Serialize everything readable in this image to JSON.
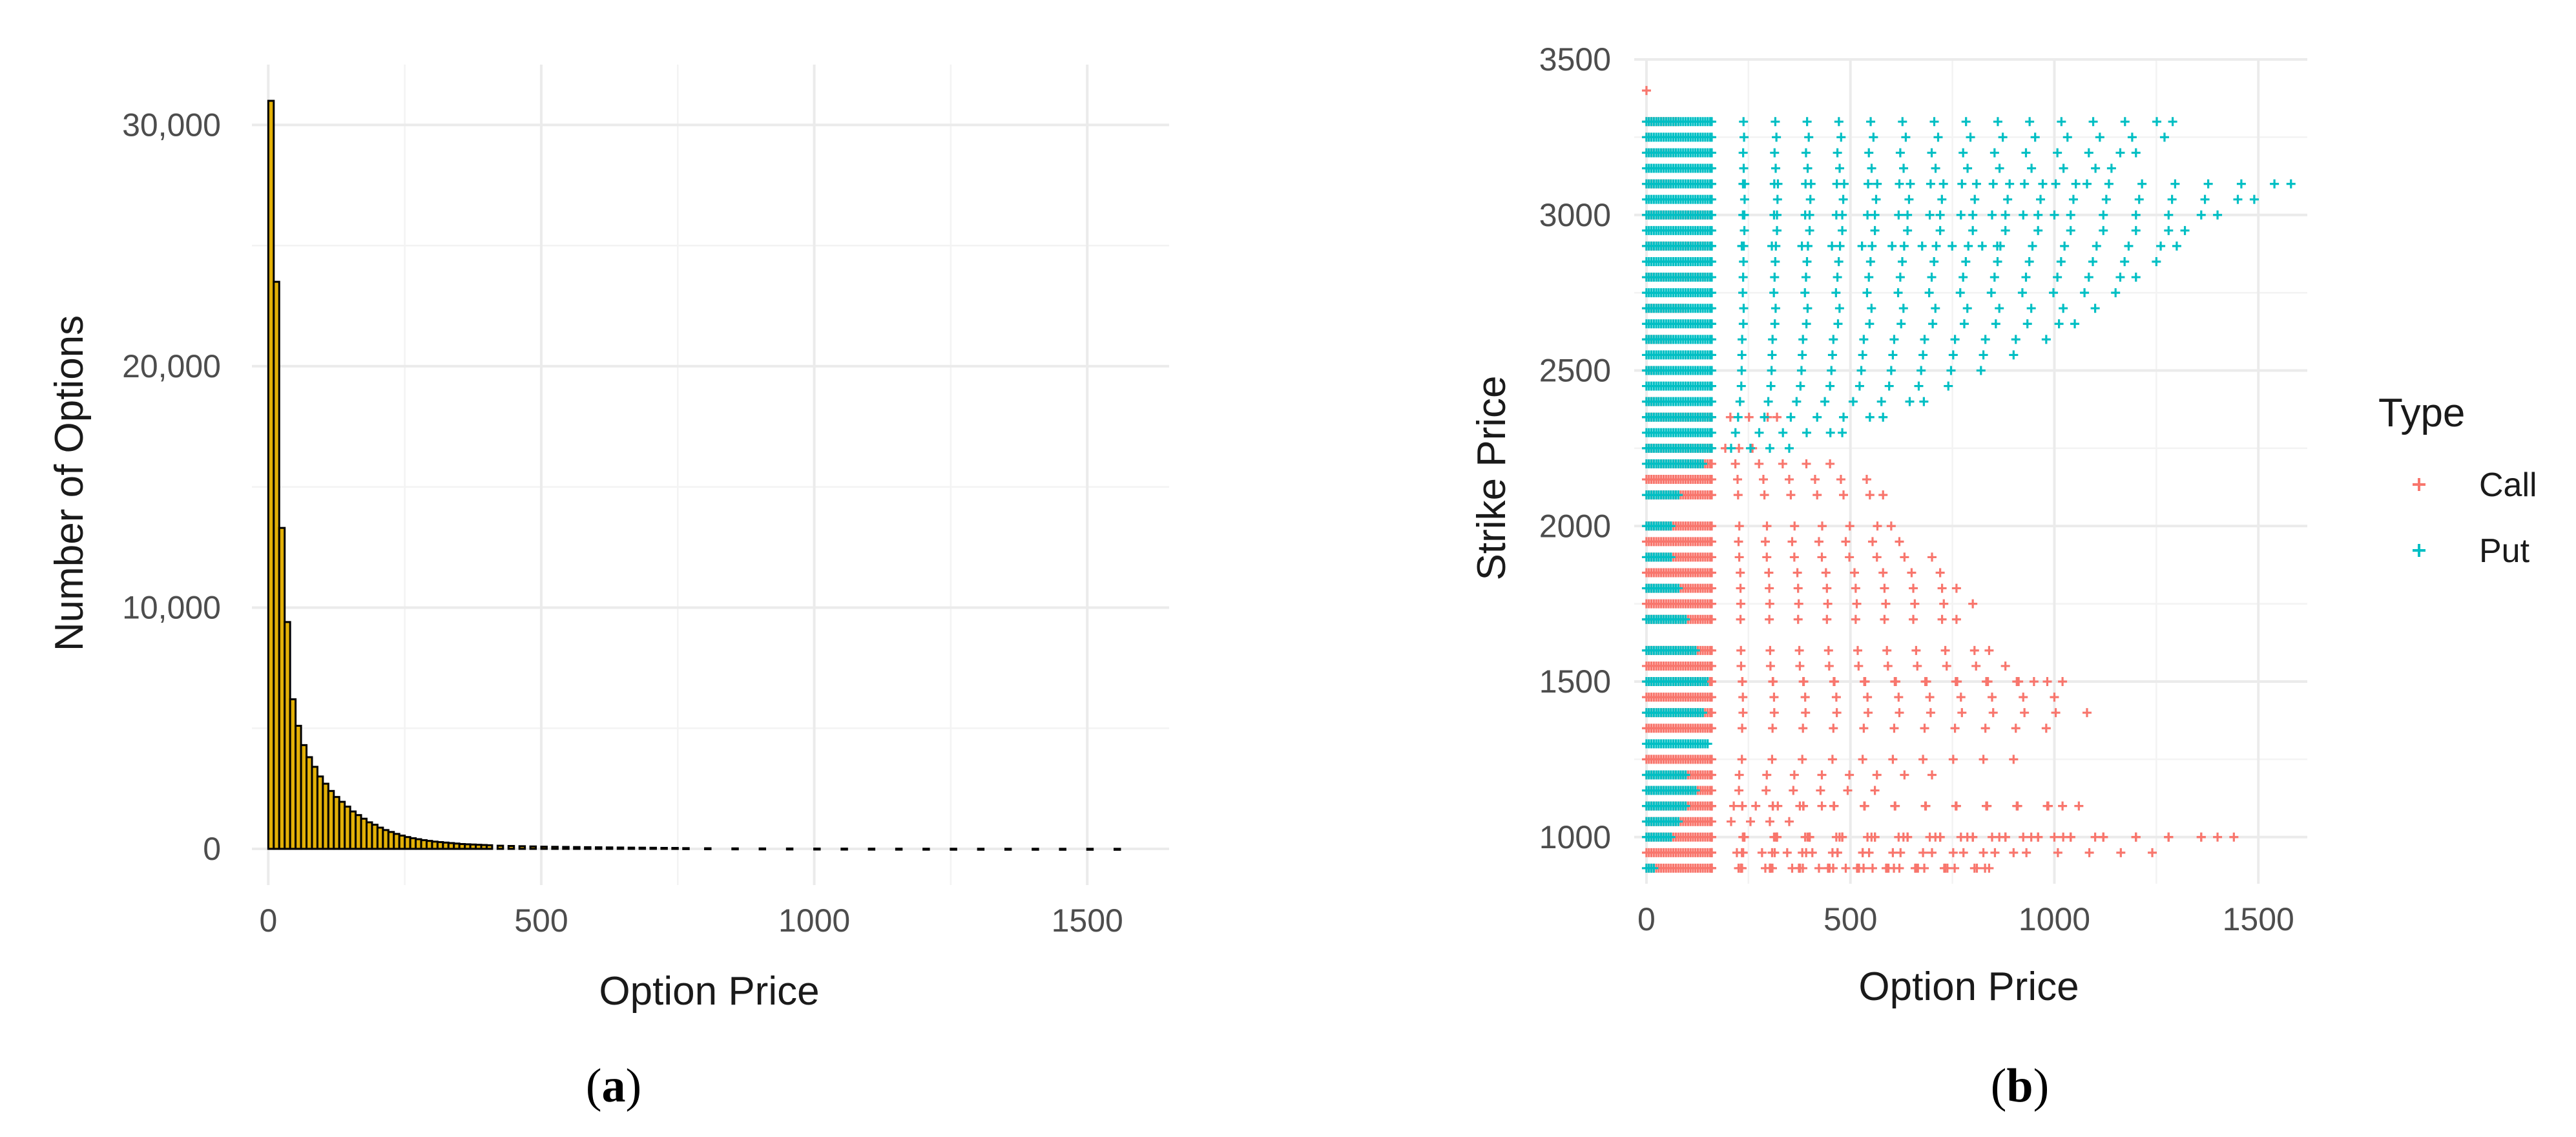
{
  "chart_data": [
    {
      "type": "bar",
      "panel_label": "a",
      "xlabel": "Option Price",
      "ylabel": "Number of Options",
      "xlim": [
        -30,
        1650
      ],
      "ylim": [
        -1500,
        32500
      ],
      "xticks": [
        0,
        500,
        1000,
        1500
      ],
      "yticks": [
        0,
        10000,
        20000,
        30000
      ],
      "ytick_labels": [
        "0",
        "10,000",
        "20,000",
        "30,000"
      ],
      "grid": true,
      "bin_width": 10,
      "fill_color": "#e2b007",
      "edge_color": "#000000",
      "bins": [
        [
          0,
          31000
        ],
        [
          10,
          23500
        ],
        [
          20,
          13300
        ],
        [
          30,
          9400
        ],
        [
          40,
          6200
        ],
        [
          50,
          5100
        ],
        [
          60,
          4300
        ],
        [
          70,
          3800
        ],
        [
          80,
          3400
        ],
        [
          90,
          3000
        ],
        [
          100,
          2700
        ],
        [
          110,
          2400
        ],
        [
          120,
          2150
        ],
        [
          130,
          1950
        ],
        [
          140,
          1750
        ],
        [
          150,
          1550
        ],
        [
          160,
          1400
        ],
        [
          170,
          1250
        ],
        [
          180,
          1100
        ],
        [
          190,
          1000
        ],
        [
          200,
          880
        ],
        [
          210,
          780
        ],
        [
          220,
          700
        ],
        [
          230,
          620
        ],
        [
          240,
          550
        ],
        [
          250,
          490
        ],
        [
          260,
          440
        ],
        [
          270,
          400
        ],
        [
          280,
          360
        ],
        [
          290,
          330
        ],
        [
          300,
          300
        ],
        [
          310,
          280
        ],
        [
          320,
          260
        ],
        [
          330,
          240
        ],
        [
          340,
          220
        ],
        [
          350,
          200
        ],
        [
          360,
          190
        ],
        [
          370,
          180
        ],
        [
          380,
          170
        ],
        [
          390,
          160
        ],
        [
          400,
          150
        ],
        [
          420,
          130
        ],
        [
          440,
          120
        ],
        [
          460,
          110
        ],
        [
          480,
          100
        ],
        [
          500,
          90
        ],
        [
          520,
          85
        ],
        [
          540,
          80
        ],
        [
          560,
          75
        ],
        [
          580,
          70
        ],
        [
          600,
          65
        ],
        [
          620,
          60
        ],
        [
          640,
          55
        ],
        [
          660,
          50
        ],
        [
          680,
          48
        ],
        [
          700,
          45
        ],
        [
          720,
          40
        ],
        [
          740,
          38
        ],
        [
          760,
          30
        ],
        [
          800,
          25
        ],
        [
          850,
          20
        ],
        [
          900,
          18
        ],
        [
          950,
          15
        ],
        [
          1000,
          12
        ],
        [
          1050,
          10
        ],
        [
          1100,
          8
        ],
        [
          1150,
          7
        ],
        [
          1200,
          6
        ],
        [
          1250,
          5
        ],
        [
          1300,
          5
        ],
        [
          1350,
          4
        ],
        [
          1400,
          4
        ],
        [
          1450,
          3
        ],
        [
          1500,
          3
        ],
        [
          1550,
          2
        ]
      ]
    },
    {
      "type": "scatter",
      "panel_label": "b",
      "xlabel": "Option Price",
      "ylabel": "Strike Price",
      "xlim": [
        -30,
        1620
      ],
      "ylim": [
        850,
        3500
      ],
      "xticks": [
        0,
        500,
        1000,
        1500
      ],
      "yticks": [
        1000,
        1500,
        2000,
        2500,
        3000,
        3500
      ],
      "grid": true,
      "marker": "plus",
      "legend": {
        "title": "Type",
        "position": "right"
      },
      "series": [
        {
          "name": "Call",
          "color": "#f8766d",
          "strike_step": 50,
          "strike_range": [
            900,
            3400
          ],
          "points": [
            [
              0,
              3400
            ],
            [
              10,
              3300
            ],
            [
              60,
              3300
            ],
            [
              80,
              3300
            ],
            [
              10,
              3250
            ],
            [
              20,
              3200
            ],
            [
              70,
              3200
            ],
            [
              10,
              3100
            ],
            [
              60,
              3100
            ],
            [
              150,
              3000
            ],
            [
              150,
              2900
            ],
            [
              150,
              2800
            ],
            [
              100,
              2700
            ],
            [
              60,
              2600
            ],
            [
              40,
              2500
            ],
            [
              40,
              2400
            ],
            [
              320,
              2350
            ],
            [
              260,
              2250
            ],
            [
              450,
              2200
            ],
            [
              540,
              2150
            ],
            [
              580,
              2100
            ],
            [
              600,
              2000
            ],
            [
              620,
              1950
            ],
            [
              700,
              1900
            ],
            [
              720,
              1850
            ],
            [
              760,
              1800
            ],
            [
              800,
              1750
            ],
            [
              760,
              1700
            ],
            [
              840,
              1600
            ],
            [
              880,
              1550
            ],
            [
              950,
              1500
            ],
            [
              1020,
              1500
            ],
            [
              1000,
              1450
            ],
            [
              1080,
              1400
            ],
            [
              980,
              1350
            ],
            [
              900,
              1250
            ],
            [
              700,
              1200
            ],
            [
              560,
              1150
            ],
            [
              430,
              1100
            ],
            [
              350,
              1050
            ],
            [
              1020,
              1100
            ],
            [
              1060,
              1100
            ],
            [
              1400,
              1000
            ],
            [
              1440,
              1000
            ],
            [
              1000,
              1000
            ],
            [
              1280,
              1000
            ],
            [
              1240,
              950
            ],
            [
              730,
              900
            ],
            [
              810,
              900
            ],
            [
              830,
              900
            ],
            [
              840,
              900
            ],
            [
              620,
              900
            ],
            [
              530,
              950
            ],
            [
              900,
              950
            ],
            [
              1100,
              1000
            ]
          ]
        },
        {
          "name": "Put",
          "color": "#00bfc4",
          "strike_step": 50,
          "strike_range": [
            900,
            3300
          ],
          "points": [
            [
              0,
              900
            ],
            [
              20,
              900
            ],
            [
              60,
              1000
            ],
            [
              80,
              1050
            ],
            [
              100,
              1100
            ],
            [
              120,
              1150
            ],
            [
              100,
              1200
            ],
            [
              150,
              1300
            ],
            [
              140,
              1400
            ],
            [
              150,
              1500
            ],
            [
              120,
              1600
            ],
            [
              100,
              1700
            ],
            [
              80,
              1800
            ],
            [
              60,
              1900
            ],
            [
              60,
              2000
            ],
            [
              80,
              2100
            ],
            [
              140,
              2200
            ],
            [
              350,
              2250
            ],
            [
              480,
              2300
            ],
            [
              580,
              2350
            ],
            [
              680,
              2400
            ],
            [
              740,
              2450
            ],
            [
              820,
              2500
            ],
            [
              900,
              2550
            ],
            [
              980,
              2600
            ],
            [
              1050,
              2650
            ],
            [
              1100,
              2700
            ],
            [
              1150,
              2750
            ],
            [
              1200,
              2800
            ],
            [
              1250,
              2850
            ],
            [
              1300,
              2900
            ],
            [
              1320,
              2950
            ],
            [
              1400,
              3000
            ],
            [
              1490,
              3050
            ],
            [
              1580,
              3100
            ],
            [
              1290,
              3300
            ],
            [
              1270,
              3250
            ],
            [
              1200,
              3200
            ],
            [
              1140,
              3150
            ],
            [
              1080,
              3100
            ],
            [
              1000,
              3000
            ],
            [
              860,
              2900
            ]
          ]
        }
      ]
    }
  ],
  "captions": {
    "a": "a",
    "b": "b"
  }
}
